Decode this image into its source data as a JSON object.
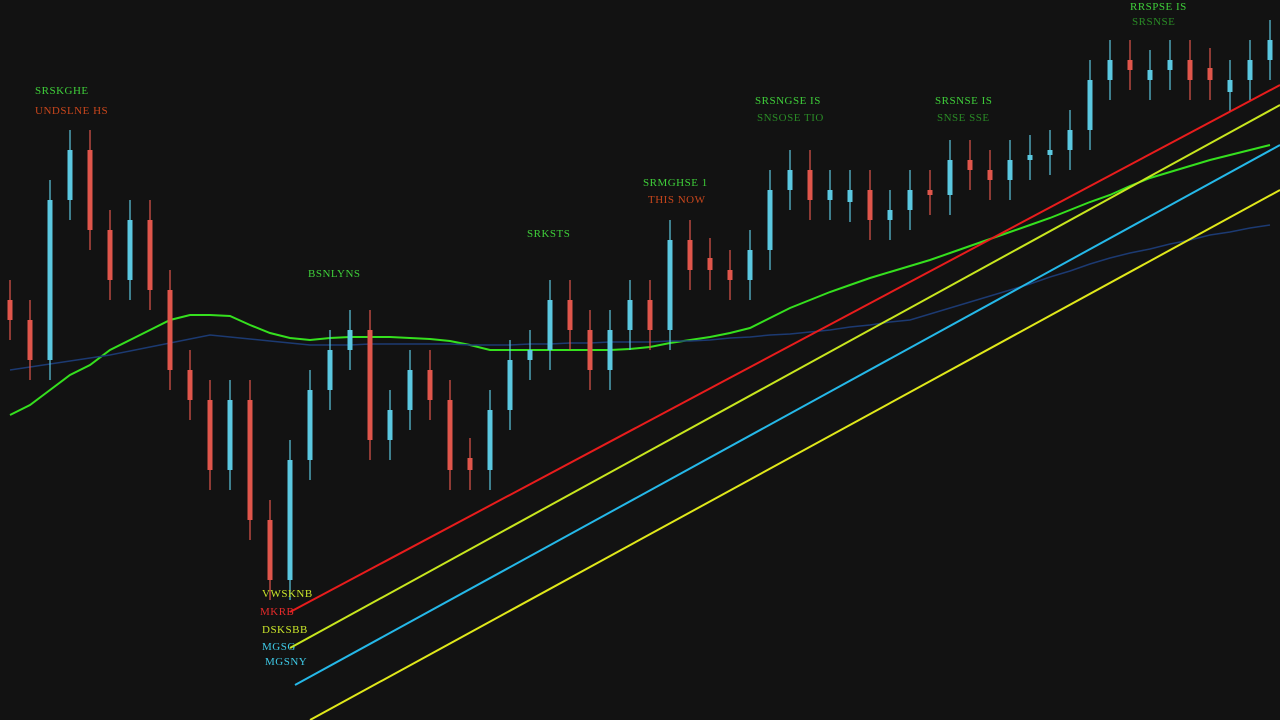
{
  "chart_data": {
    "type": "candlestick",
    "annotations": [
      "SRSKGHE",
      "UNDSLNE HS",
      "BSNLYNS",
      "SRKSTS",
      "SRMGHSE 1",
      "THIS NOW",
      "SRSNGSE IS",
      "SNSOSE TIO",
      "SRSNSE IS",
      "SNSE SSE",
      "RRSPSE IS",
      "SRSNSE",
      "VWSKNB",
      "MKRB",
      "DSKSBB",
      "MGSG",
      "MGSNY"
    ],
    "xlim": [
      -0.5,
      63.5
    ],
    "ylim": [
      0,
      720
    ],
    "up_color": "#5bc8e0",
    "down_color": "#e0564b",
    "open": [
      420,
      400,
      360,
      520,
      570,
      490,
      440,
      500,
      430,
      350,
      320,
      250,
      320,
      200,
      140,
      260,
      330,
      370,
      390,
      280,
      310,
      350,
      320,
      262,
      250,
      310,
      360,
      370,
      420,
      390,
      350,
      390,
      420,
      390,
      480,
      462,
      450,
      440,
      470,
      530,
      550,
      520,
      518,
      530,
      500,
      510,
      530,
      525,
      560,
      550,
      540,
      560,
      565,
      570,
      590,
      640,
      660,
      640,
      650,
      660,
      652,
      628,
      640,
      660
    ],
    "high": [
      440,
      420,
      540,
      590,
      590,
      510,
      520,
      520,
      450,
      370,
      340,
      340,
      340,
      220,
      280,
      350,
      390,
      410,
      410,
      330,
      370,
      370,
      340,
      282,
      330,
      380,
      390,
      440,
      440,
      410,
      410,
      440,
      440,
      500,
      500,
      482,
      470,
      490,
      550,
      570,
      570,
      550,
      550,
      550,
      530,
      550,
      550,
      580,
      580,
      570,
      580,
      585,
      590,
      610,
      660,
      680,
      680,
      670,
      680,
      680,
      672,
      660,
      680,
      700
    ],
    "low": [
      380,
      340,
      340,
      500,
      470,
      420,
      420,
      410,
      330,
      300,
      230,
      230,
      180,
      120,
      120,
      240,
      310,
      350,
      260,
      260,
      290,
      300,
      230,
      230,
      230,
      290,
      340,
      350,
      370,
      330,
      330,
      370,
      370,
      370,
      430,
      430,
      420,
      420,
      450,
      510,
      500,
      500,
      498,
      480,
      480,
      490,
      505,
      505,
      530,
      520,
      520,
      540,
      545,
      550,
      570,
      620,
      630,
      620,
      630,
      620,
      620,
      608,
      620,
      640
    ],
    "close": [
      400,
      360,
      520,
      570,
      490,
      440,
      500,
      430,
      350,
      320,
      250,
      320,
      200,
      140,
      260,
      330,
      370,
      390,
      280,
      310,
      350,
      320,
      250,
      250,
      310,
      360,
      370,
      420,
      390,
      350,
      390,
      420,
      390,
      480,
      450,
      450,
      440,
      470,
      530,
      550,
      520,
      530,
      530,
      500,
      510,
      530,
      525,
      560,
      550,
      540,
      560,
      565,
      570,
      590,
      640,
      660,
      650,
      650,
      660,
      640,
      640,
      640,
      660,
      680
    ],
    "series": [
      {
        "color": "#35e01e",
        "values": [
          305,
          315,
          330,
          345,
          355,
          370,
          380,
          390,
          400,
          405,
          405,
          404,
          395,
          387,
          382,
          380,
          382,
          383,
          383,
          383,
          382,
          381,
          379,
          375,
          370,
          370,
          370,
          370,
          370,
          370,
          370,
          371,
          373,
          377,
          380,
          383,
          387,
          392,
          402,
          412,
          420,
          428,
          435,
          442,
          448,
          454,
          460,
          467,
          474,
          481,
          488,
          495,
          502,
          510,
          518,
          525,
          534,
          542,
          548,
          554,
          560,
          565,
          570,
          575
        ]
      },
      {
        "color": "#1c3a72",
        "values": [
          350,
          353,
          356,
          359,
          362,
          365,
          369,
          373,
          377,
          381,
          385,
          383,
          381,
          379,
          377,
          375,
          375,
          375,
          376,
          376,
          376,
          376,
          376,
          375,
          375,
          375,
          376,
          376,
          377,
          377,
          378,
          378,
          378,
          379,
          379,
          380,
          382,
          383,
          385,
          386,
          388,
          390,
          393,
          395,
          398,
          400,
          406,
          412,
          418,
          424,
          430,
          436,
          443,
          449,
          456,
          462,
          467,
          471,
          476,
          480,
          485,
          488,
          492,
          495
        ]
      }
    ],
    "trendlines": [
      {
        "color": "#e81c1c",
        "x": [
          14,
          63.5
        ],
        "values": [
          108,
          635
        ]
      },
      {
        "color": "#c8e61e",
        "x": [
          14,
          63.5
        ],
        "values": [
          72,
          615
        ]
      },
      {
        "color": "#25b8e8",
        "x": [
          14.25,
          63.5
        ],
        "values": [
          35,
          575
        ]
      },
      {
        "color": "#e0e81a",
        "x": [
          15,
          63.5
        ],
        "values": [
          0,
          530
        ]
      }
    ]
  }
}
